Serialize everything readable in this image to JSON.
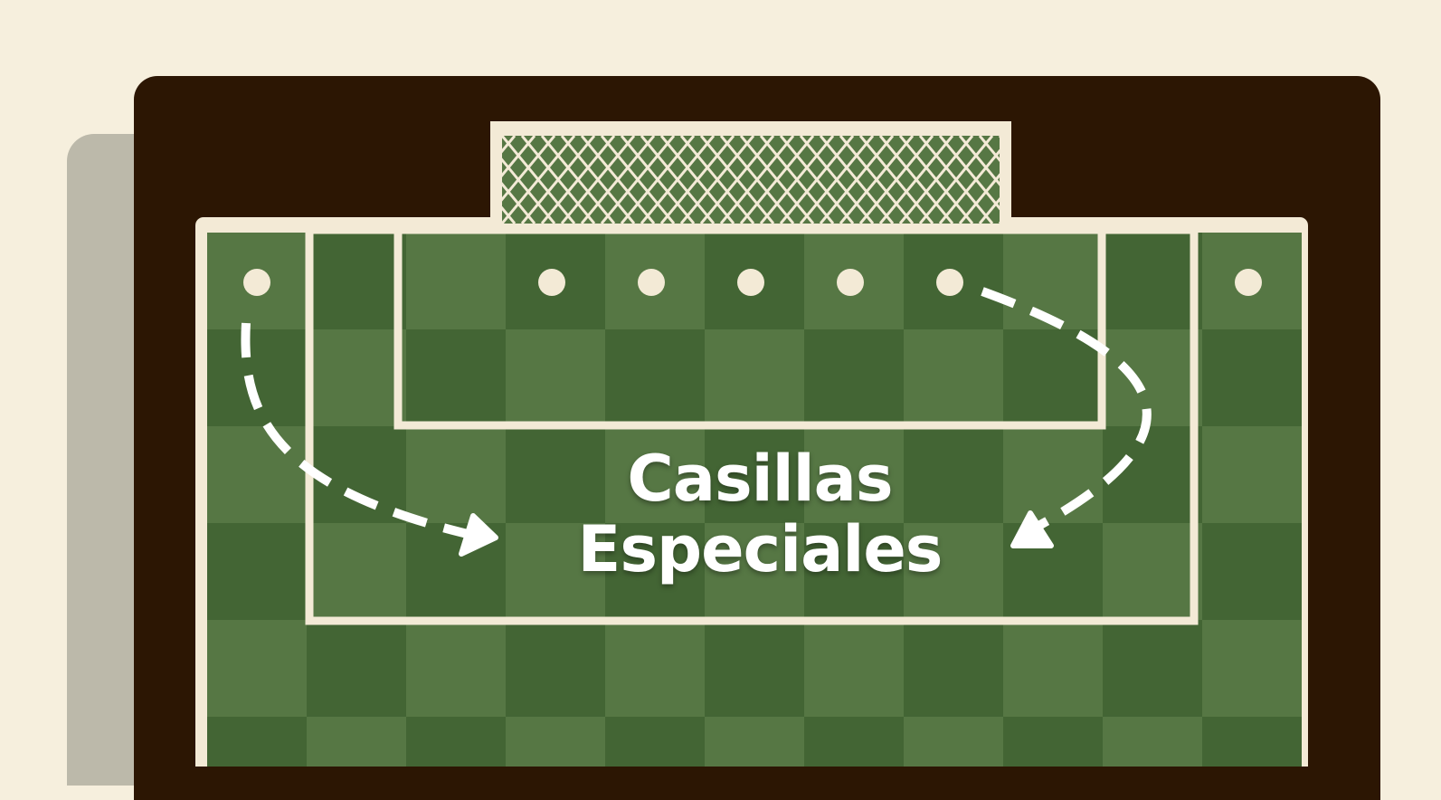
{
  "title": {
    "line1": "Casillas",
    "line2": "Especiales"
  },
  "board": {
    "columns": 11,
    "rows": 6,
    "light_square_color": "#567744",
    "dark_square_color": "#436534",
    "line_color": "#f3ead6",
    "frame_color": "#2c1603",
    "background_color": "#f6efdd"
  },
  "markers": {
    "count": 7,
    "color": "#f3ead6"
  },
  "arrows": [
    {
      "name": "left-curved-arrow",
      "direction": "down-right"
    },
    {
      "name": "right-curved-arrow",
      "direction": "down-left"
    }
  ]
}
